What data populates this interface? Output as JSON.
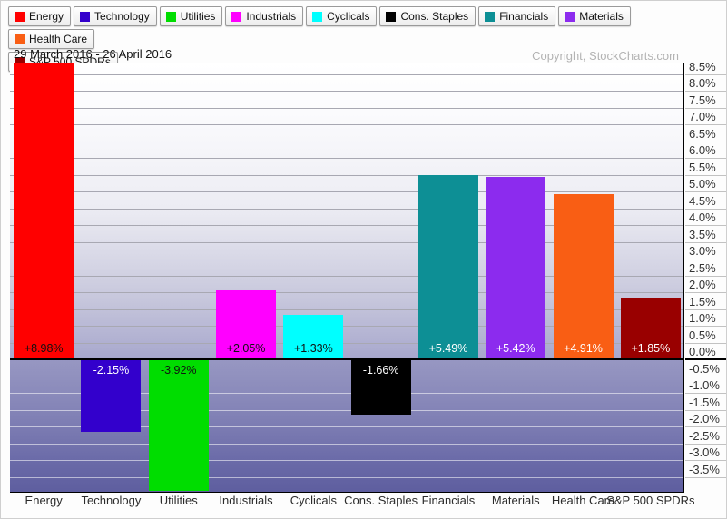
{
  "header": {
    "date_range": "29 March 2016 - 26 April 2016",
    "copyright": "Copyright, StockCharts.com"
  },
  "legend": {
    "items": [
      {
        "label": "Energy",
        "color": "#ff0000"
      },
      {
        "label": "Technology",
        "color": "#3300cc"
      },
      {
        "label": "Utilities",
        "color": "#00dd00"
      },
      {
        "label": "Industrials",
        "color": "#ff00ff"
      },
      {
        "label": "Cyclicals",
        "color": "#00ffff"
      },
      {
        "label": "Cons. Staples",
        "color": "#000000"
      },
      {
        "label": "Financials",
        "color": "#0d8f95"
      },
      {
        "label": "Materials",
        "color": "#8c2bee"
      },
      {
        "label": "Health Care",
        "color": "#f95e14"
      },
      {
        "label": "S&P 500 SPDRs",
        "color": "#990000"
      }
    ]
  },
  "chart_data": {
    "type": "bar",
    "title": "",
    "xlabel": "",
    "ylabel": "",
    "categories": [
      "Energy",
      "Technology",
      "Utilities",
      "Industrials",
      "Cyclicals",
      "Cons. Staples",
      "Financials",
      "Materials",
      "Health Care",
      "S&P 500 SPDRs"
    ],
    "values": [
      8.98,
      -2.15,
      -3.92,
      2.05,
      1.33,
      -1.66,
      5.49,
      5.42,
      4.91,
      1.85
    ],
    "value_labels": [
      "+8.98%",
      "-2.15%",
      "-3.92%",
      "+2.05%",
      "+1.33%",
      "-1.66%",
      "+5.49%",
      "+5.42%",
      "+4.91%",
      "+1.85%"
    ],
    "bar_colors": [
      "#ff0000",
      "#3300cc",
      "#00dd00",
      "#ff00ff",
      "#00ffff",
      "#000000",
      "#0d8f95",
      "#8c2bee",
      "#f95e14",
      "#990000"
    ],
    "value_label_colors": [
      "#111111",
      "#ffffff",
      "#111111",
      "#111111",
      "#111111",
      "#ffffff",
      "#ffffff",
      "#ffffff",
      "#ffffff",
      "#ffffff"
    ],
    "y_axis_labels": [
      "8.5%",
      "8.0%",
      "7.5%",
      "7.0%",
      "6.5%",
      "6.0%",
      "5.5%",
      "5.0%",
      "4.5%",
      "4.0%",
      "3.5%",
      "3.0%",
      "2.5%",
      "2.0%",
      "1.5%",
      "1.0%",
      "0.5%",
      "0.0%",
      "-0.5%",
      "-1.0%",
      "-1.5%",
      "-2.0%",
      "-2.5%",
      "-3.0%",
      "-3.5%"
    ],
    "ytick_step": 0.5,
    "ylim": [
      -3.97,
      8.86
    ],
    "grid": true,
    "legend_position": "top"
  }
}
